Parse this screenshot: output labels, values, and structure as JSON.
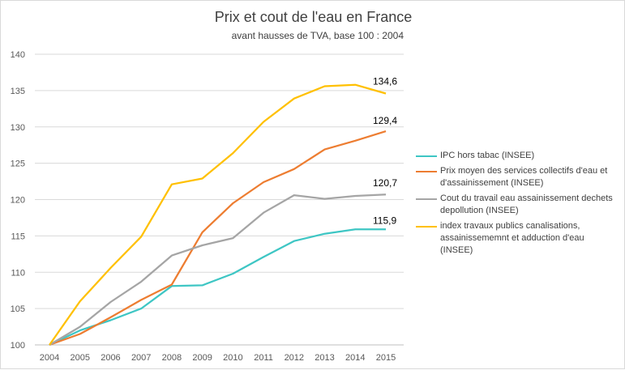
{
  "chart_data": {
    "type": "line",
    "title": "Prix et cout de l'eau en France",
    "subtitle": "avant hausses de TVA,  base 100 : 2004",
    "x": [
      "2004",
      "2005",
      "2006",
      "2007",
      "2008",
      "2009",
      "2010",
      "2011",
      "2012",
      "2013",
      "2014",
      "2015"
    ],
    "ylim": [
      100,
      140
    ],
    "yticks": [
      100,
      105,
      110,
      115,
      120,
      125,
      130,
      135,
      140
    ],
    "grid": true,
    "legend_position": "right",
    "series": [
      {
        "name": "IPC hors tabac (INSEE)",
        "color": "#3ec6c4",
        "values": [
          100,
          102.0,
          103.4,
          105.0,
          108.1,
          108.2,
          109.8,
          112.1,
          114.3,
          115.3,
          115.9,
          115.9
        ],
        "end_label": "115,9"
      },
      {
        "name": "Prix moyen des services collectifs d'eau et d'assainissement (INSEE)",
        "color": "#ed7d31",
        "values": [
          100,
          101.5,
          103.8,
          106.2,
          108.3,
          115.5,
          119.5,
          122.4,
          124.2,
          126.9,
          128.1,
          129.4
        ],
        "end_label": "129,4"
      },
      {
        "name": "Cout du travail eau assainissement dechets depollution (INSEE)",
        "color": "#a5a5a5",
        "values": [
          100,
          102.5,
          105.9,
          108.7,
          112.3,
          113.7,
          114.7,
          118.2,
          120.6,
          120.1,
          120.5,
          120.7
        ],
        "end_label": "120,7"
      },
      {
        "name": "index travaux publics canalisations, assainissememnt et adduction d'eau (INSEE)",
        "color": "#ffc000",
        "values": [
          100,
          106.0,
          110.6,
          114.9,
          122.1,
          122.9,
          126.4,
          130.7,
          133.9,
          135.6,
          135.8,
          134.6
        ],
        "end_label": "134,6"
      }
    ]
  }
}
